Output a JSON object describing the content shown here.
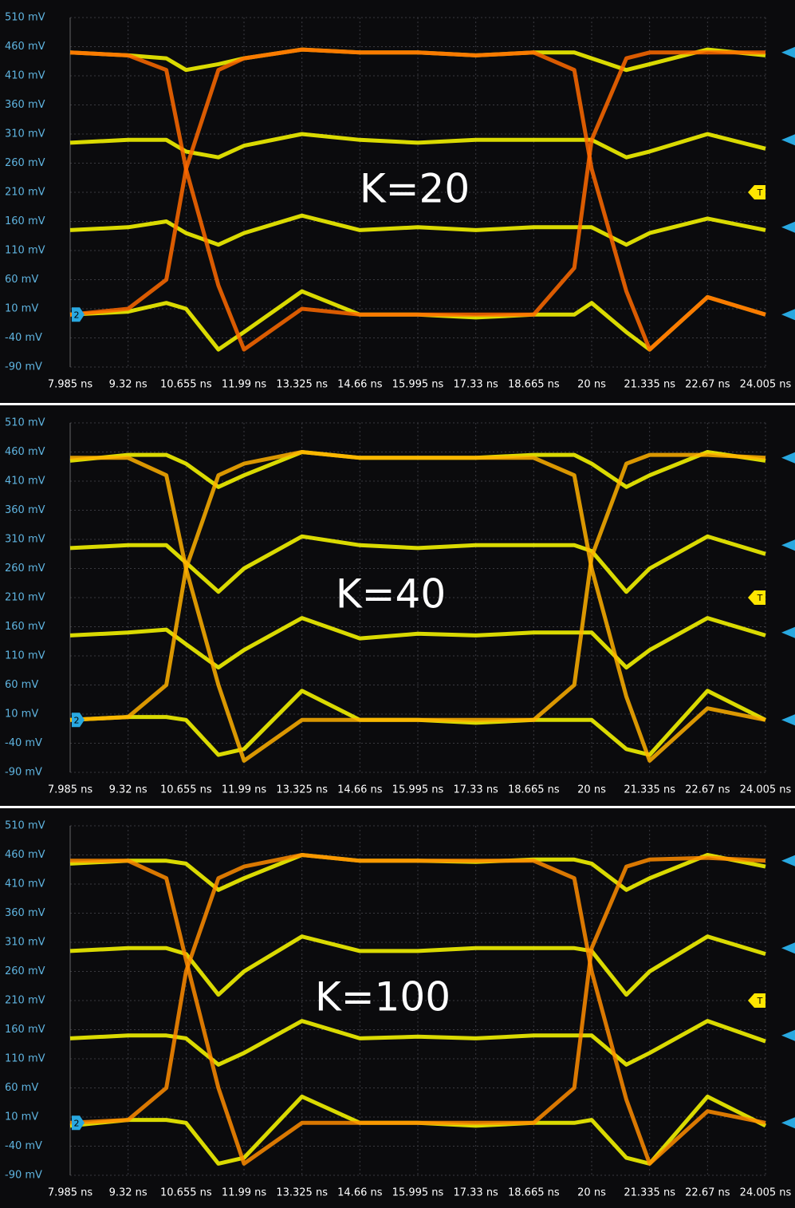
{
  "chart_data": [
    {
      "type": "line",
      "annotation": "K=20",
      "channel_label": "2",
      "trigger_label": "T",
      "xlim": [
        7.985,
        24.005
      ],
      "ylim": [
        -90,
        510
      ],
      "xticks": [
        {
          "value": 7.985,
          "label": "7.985 ns"
        },
        {
          "value": 9.32,
          "label": "9.32 ns"
        },
        {
          "value": 10.655,
          "label": "10.655 ns"
        },
        {
          "value": 11.99,
          "label": "11.99 ns"
        },
        {
          "value": 13.325,
          "label": "13.325 ns"
        },
        {
          "value": 14.66,
          "label": "14.66 ns"
        },
        {
          "value": 15.995,
          "label": "15.995 ns"
        },
        {
          "value": 17.33,
          "label": "17.33 ns"
        },
        {
          "value": 18.665,
          "label": "18.665 ns"
        },
        {
          "value": 20,
          "label": "20 ns"
        },
        {
          "value": 21.335,
          "label": "21.335 ns"
        },
        {
          "value": 22.67,
          "label": "22.67 ns"
        },
        {
          "value": 24.005,
          "label": "24.005 ns"
        }
      ],
      "yticks": [
        {
          "value": 510,
          "label": "510 mV"
        },
        {
          "value": 460,
          "label": "460 mV"
        },
        {
          "value": 410,
          "label": "410 mV"
        },
        {
          "value": 360,
          "label": "360 mV"
        },
        {
          "value": 310,
          "label": "310 mV"
        },
        {
          "value": 260,
          "label": "260 mV"
        },
        {
          "value": 210,
          "label": "210 mV"
        },
        {
          "value": 160,
          "label": "160 mV"
        },
        {
          "value": 110,
          "label": "110 mV"
        },
        {
          "value": 60,
          "label": "60 mV"
        },
        {
          "value": 10,
          "label": "10 mV"
        },
        {
          "value": -40,
          "label": "-40 mV"
        },
        {
          "value": -90,
          "label": "-90 mV"
        }
      ],
      "grid": true,
      "x": [
        7.985,
        9.32,
        10.2,
        10.655,
        11.4,
        11.99,
        13.325,
        14.66,
        15.995,
        17.33,
        18.665,
        19.6,
        20,
        20.8,
        21.335,
        22.67,
        24.005
      ],
      "series": [
        {
          "color": "#ffff00",
          "values": [
            450,
            445,
            440,
            420,
            430,
            440,
            455,
            450,
            450,
            445,
            450,
            450,
            440,
            420,
            430,
            455,
            445
          ]
        },
        {
          "color": "#ffff00",
          "values": [
            295,
            300,
            300,
            280,
            270,
            290,
            310,
            300,
            295,
            300,
            300,
            300,
            300,
            270,
            280,
            310,
            285
          ]
        },
        {
          "color": "#ffff00",
          "values": [
            145,
            150,
            160,
            140,
            120,
            140,
            170,
            145,
            150,
            145,
            150,
            150,
            150,
            120,
            140,
            165,
            145
          ]
        },
        {
          "color": "#ffff00",
          "values": [
            0,
            5,
            20,
            10,
            -60,
            -30,
            40,
            0,
            0,
            -5,
            0,
            0,
            20,
            -30,
            -60,
            30,
            0
          ]
        },
        {
          "color": "#ff6a00",
          "values": [
            450,
            445,
            420,
            250,
            50,
            -60,
            10,
            0,
            0,
            0,
            0,
            80,
            300,
            440,
            450,
            450,
            450
          ]
        },
        {
          "color": "#ff6a00",
          "values": [
            0,
            10,
            60,
            250,
            420,
            440,
            455,
            450,
            450,
            445,
            450,
            420,
            250,
            40,
            -60,
            30,
            0
          ]
        }
      ]
    },
    {
      "type": "line",
      "annotation": "K=40",
      "channel_label": "2",
      "trigger_label": "T",
      "xlim": [
        7.985,
        24.005
      ],
      "ylim": [
        -90,
        510
      ],
      "xticks": [
        {
          "value": 7.985,
          "label": "7.985 ns"
        },
        {
          "value": 9.32,
          "label": "9.32 ns"
        },
        {
          "value": 10.655,
          "label": "10.655 ns"
        },
        {
          "value": 11.99,
          "label": "11.99 ns"
        },
        {
          "value": 13.325,
          "label": "13.325 ns"
        },
        {
          "value": 14.66,
          "label": "14.66 ns"
        },
        {
          "value": 15.995,
          "label": "15.995 ns"
        },
        {
          "value": 17.33,
          "label": "17.33 ns"
        },
        {
          "value": 18.665,
          "label": "18.665 ns"
        },
        {
          "value": 20,
          "label": "20 ns"
        },
        {
          "value": 21.335,
          "label": "21.335 ns"
        },
        {
          "value": 22.67,
          "label": "22.67 ns"
        },
        {
          "value": 24.005,
          "label": "24.005 ns"
        }
      ],
      "yticks": [
        {
          "value": 510,
          "label": "510 mV"
        },
        {
          "value": 460,
          "label": "460 mV"
        },
        {
          "value": 410,
          "label": "410 mV"
        },
        {
          "value": 360,
          "label": "360 mV"
        },
        {
          "value": 310,
          "label": "310 mV"
        },
        {
          "value": 260,
          "label": "260 mV"
        },
        {
          "value": 210,
          "label": "210 mV"
        },
        {
          "value": 160,
          "label": "160 mV"
        },
        {
          "value": 110,
          "label": "110 mV"
        },
        {
          "value": 60,
          "label": "60 mV"
        },
        {
          "value": 10,
          "label": "10 mV"
        },
        {
          "value": -40,
          "label": "-40 mV"
        },
        {
          "value": -90,
          "label": "-90 mV"
        }
      ],
      "grid": true,
      "x": [
        7.985,
        9.32,
        10.2,
        10.655,
        11.4,
        11.99,
        13.325,
        14.66,
        15.995,
        17.33,
        18.665,
        19.6,
        20,
        20.8,
        21.335,
        22.67,
        24.005
      ],
      "series": [
        {
          "color": "#ffff00",
          "values": [
            445,
            455,
            455,
            440,
            400,
            420,
            460,
            450,
            450,
            450,
            455,
            455,
            440,
            400,
            420,
            460,
            445
          ]
        },
        {
          "color": "#ffff00",
          "values": [
            295,
            300,
            300,
            270,
            220,
            260,
            315,
            300,
            295,
            300,
            300,
            300,
            290,
            220,
            260,
            315,
            285
          ]
        },
        {
          "color": "#ffff00",
          "values": [
            145,
            150,
            155,
            130,
            90,
            120,
            175,
            140,
            148,
            145,
            150,
            150,
            150,
            90,
            120,
            175,
            145
          ]
        },
        {
          "color": "#ffff00",
          "values": [
            0,
            5,
            5,
            0,
            -60,
            -50,
            50,
            0,
            0,
            -5,
            0,
            0,
            0,
            -50,
            -60,
            50,
            0
          ]
        },
        {
          "color": "#ffb000",
          "values": [
            450,
            450,
            420,
            260,
            60,
            -70,
            0,
            0,
            0,
            0,
            0,
            60,
            280,
            440,
            455,
            455,
            450
          ]
        },
        {
          "color": "#ffb000",
          "values": [
            0,
            5,
            60,
            260,
            420,
            440,
            460,
            450,
            450,
            450,
            450,
            420,
            260,
            40,
            -70,
            20,
            0
          ]
        }
      ]
    },
    {
      "type": "line",
      "annotation": "K=100",
      "channel_label": "2",
      "trigger_label": "T",
      "xlim": [
        7.985,
        24.005
      ],
      "ylim": [
        -90,
        510
      ],
      "xticks": [
        {
          "value": 7.985,
          "label": "7.985 ns"
        },
        {
          "value": 9.32,
          "label": "9.32 ns"
        },
        {
          "value": 10.655,
          "label": "10.655 ns"
        },
        {
          "value": 11.99,
          "label": "11.99 ns"
        },
        {
          "value": 13.325,
          "label": "13.325 ns"
        },
        {
          "value": 14.66,
          "label": "14.66 ns"
        },
        {
          "value": 15.995,
          "label": "15.995 ns"
        },
        {
          "value": 17.33,
          "label": "17.33 ns"
        },
        {
          "value": 18.665,
          "label": "18.665 ns"
        },
        {
          "value": 20,
          "label": "20 ns"
        },
        {
          "value": 21.335,
          "label": "21.335 ns"
        },
        {
          "value": 22.67,
          "label": "22.67 ns"
        },
        {
          "value": 24.005,
          "label": "24.005 ns"
        }
      ],
      "yticks": [
        {
          "value": 510,
          "label": "510 mV"
        },
        {
          "value": 460,
          "label": "460 mV"
        },
        {
          "value": 410,
          "label": "410 mV"
        },
        {
          "value": 360,
          "label": "360 mV"
        },
        {
          "value": 310,
          "label": "310 mV"
        },
        {
          "value": 260,
          "label": "260 mV"
        },
        {
          "value": 210,
          "label": "210 mV"
        },
        {
          "value": 160,
          "label": "160 mV"
        },
        {
          "value": 110,
          "label": "110 mV"
        },
        {
          "value": 60,
          "label": "60 mV"
        },
        {
          "value": 10,
          "label": "10 mV"
        },
        {
          "value": -40,
          "label": "-40 mV"
        },
        {
          "value": -90,
          "label": "-90 mV"
        }
      ],
      "grid": true,
      "x": [
        7.985,
        9.32,
        10.2,
        10.655,
        11.4,
        11.99,
        13.325,
        14.66,
        15.995,
        17.33,
        18.665,
        19.6,
        20,
        20.8,
        21.335,
        22.67,
        24.005
      ],
      "series": [
        {
          "color": "#ffff00",
          "values": [
            445,
            450,
            450,
            445,
            400,
            420,
            460,
            450,
            450,
            448,
            452,
            452,
            445,
            400,
            420,
            460,
            440
          ]
        },
        {
          "color": "#ffff00",
          "values": [
            295,
            300,
            300,
            290,
            220,
            260,
            320,
            295,
            295,
            300,
            300,
            300,
            295,
            220,
            260,
            320,
            290
          ]
        },
        {
          "color": "#ffff00",
          "values": [
            145,
            150,
            150,
            145,
            100,
            120,
            175,
            145,
            148,
            145,
            150,
            150,
            150,
            100,
            120,
            175,
            140
          ]
        },
        {
          "color": "#ffff00",
          "values": [
            -5,
            5,
            5,
            0,
            -70,
            -60,
            45,
            0,
            0,
            -5,
            0,
            0,
            5,
            -60,
            -70,
            45,
            -5
          ]
        },
        {
          "color": "#ff8c00",
          "values": [
            450,
            450,
            420,
            280,
            60,
            -70,
            0,
            0,
            0,
            0,
            0,
            60,
            300,
            440,
            452,
            455,
            450
          ]
        },
        {
          "color": "#ff8c00",
          "values": [
            0,
            5,
            60,
            260,
            420,
            440,
            460,
            450,
            450,
            450,
            450,
            420,
            260,
            40,
            -70,
            20,
            0
          ]
        }
      ]
    }
  ]
}
